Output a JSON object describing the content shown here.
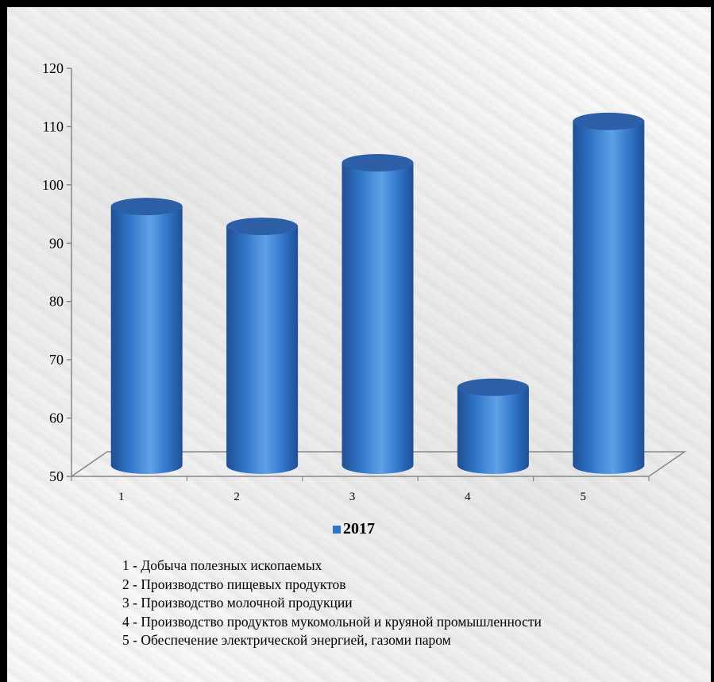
{
  "colors": {
    "bar_main": "#2f74c8",
    "bar_light": "#5fa0e6",
    "bar_dark": "#1f4f93",
    "bar_top": "#2c5fa6",
    "axis": "#888888"
  },
  "chart_data": {
    "type": "bar",
    "style": "3d-cylinder",
    "categories": [
      "1",
      "2",
      "3",
      "4",
      "5"
    ],
    "series": [
      {
        "name": "2017",
        "values": [
          95.2,
          91.8,
          102.7,
          64.2,
          109.8
        ]
      }
    ],
    "y_ticks": [
      "50",
      "60",
      "70",
      "80",
      "90",
      "100",
      "110",
      "120"
    ],
    "ylim": [
      50,
      120
    ],
    "legend_position": "bottom",
    "grid": false,
    "notes": [
      "1 - Добыча полезных ископаемых",
      "2 - Производство пищевых продуктов",
      "3 - Производство молочной продукции",
      "4 - Производство продуктов мукомольной и круяной промышленности",
      "5 - Обеспечение электрической  энергией, газоми паром"
    ]
  }
}
